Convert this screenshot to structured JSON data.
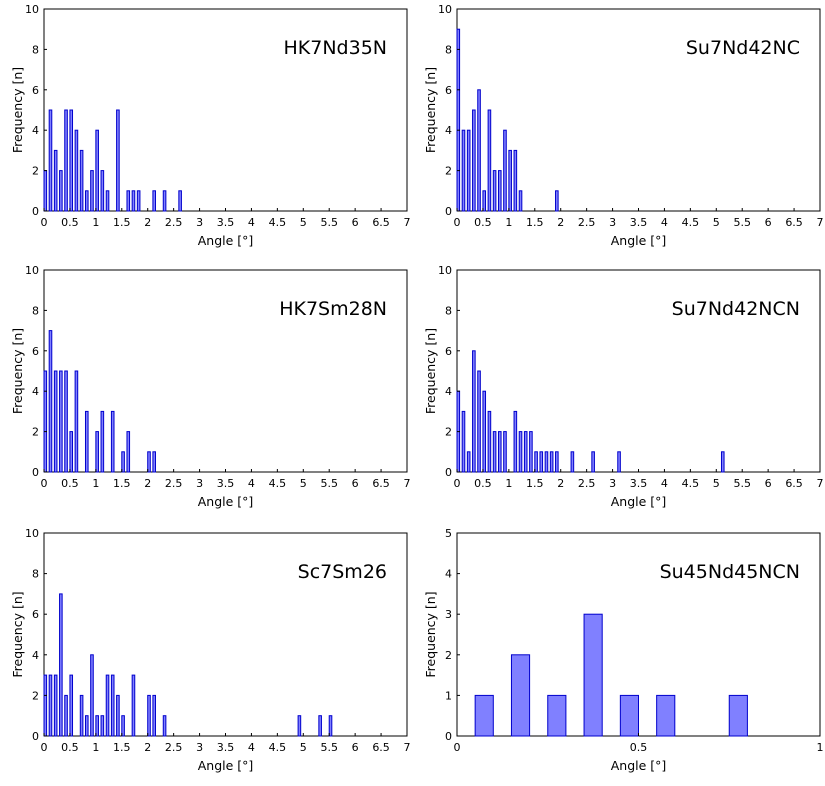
{
  "colors": {
    "bar_fill": "#8080ff",
    "bar_stroke": "#0000cc",
    "axis": "#000000"
  },
  "chart_data": [
    {
      "type": "bar",
      "title": "HK7Nd35N",
      "xlabel": "Angle [°]",
      "ylabel": "Frequency [n]",
      "xlim": [
        0,
        7
      ],
      "ylim": [
        0,
        10
      ],
      "xticks": [
        "0",
        "0.5",
        "1",
        "1.5",
        "2",
        "2.5",
        "3",
        "3.5",
        "4",
        "4.5",
        "5",
        "5.5",
        "6",
        "6.5",
        "7"
      ],
      "yticks": [
        "0",
        "2",
        "4",
        "6",
        "8",
        "10"
      ],
      "bin_width": 0.05,
      "x": [
        0.0,
        0.1,
        0.2,
        0.3,
        0.4,
        0.5,
        0.6,
        0.7,
        0.8,
        0.9,
        1.0,
        1.1,
        1.2,
        1.4,
        1.6,
        1.7,
        1.8,
        2.1,
        2.3,
        2.6
      ],
      "values": [
        2,
        5,
        3,
        2,
        5,
        5,
        4,
        3,
        1,
        2,
        4,
        2,
        1,
        5,
        1,
        1,
        1,
        1,
        1,
        1
      ]
    },
    {
      "type": "bar",
      "title": "Su7Nd42NC",
      "xlabel": "Angle [°]",
      "ylabel": "Frequency [n]",
      "xlim": [
        0,
        7
      ],
      "ylim": [
        0,
        10
      ],
      "xticks": [
        "0",
        "0.5",
        "1",
        "1.5",
        "2",
        "2.5",
        "3",
        "3.5",
        "4",
        "4.5",
        "5",
        "5.5",
        "6",
        "6.5",
        "7"
      ],
      "yticks": [
        "0",
        "2",
        "4",
        "6",
        "8",
        "10"
      ],
      "bin_width": 0.05,
      "x": [
        0.0,
        0.1,
        0.2,
        0.3,
        0.4,
        0.5,
        0.6,
        0.7,
        0.8,
        0.9,
        1.0,
        1.1,
        1.2,
        1.9
      ],
      "values": [
        9,
        4,
        4,
        5,
        6,
        1,
        5,
        2,
        2,
        4,
        3,
        3,
        1,
        1
      ]
    },
    {
      "type": "bar",
      "title": "HK7Sm28N",
      "xlabel": "Angle [°]",
      "ylabel": "Frequency [n]",
      "xlim": [
        0,
        7
      ],
      "ylim": [
        0,
        10
      ],
      "xticks": [
        "0",
        "0.5",
        "1",
        "1.5",
        "2",
        "2.5",
        "3",
        "3.5",
        "4",
        "4.5",
        "5",
        "5.5",
        "6",
        "6.5",
        "7"
      ],
      "yticks": [
        "0",
        "2",
        "4",
        "6",
        "8",
        "10"
      ],
      "bin_width": 0.05,
      "x": [
        0.0,
        0.1,
        0.2,
        0.3,
        0.4,
        0.5,
        0.6,
        0.8,
        1.0,
        1.1,
        1.3,
        1.5,
        1.6,
        2.0,
        2.1
      ],
      "values": [
        5,
        7,
        5,
        5,
        5,
        2,
        5,
        3,
        2,
        3,
        3,
        1,
        2,
        1,
        1
      ]
    },
    {
      "type": "bar",
      "title": "Su7Nd42NCN",
      "xlabel": "Angle [°]",
      "ylabel": "Frequency [n]",
      "xlim": [
        0,
        7
      ],
      "ylim": [
        0,
        10
      ],
      "xticks": [
        "0",
        "0.5",
        "1",
        "1.5",
        "2",
        "2.5",
        "3",
        "3.5",
        "4",
        "4.5",
        "5",
        "5.5",
        "6",
        "6.5",
        "7"
      ],
      "yticks": [
        "0",
        "2",
        "4",
        "6",
        "8",
        "10"
      ],
      "bin_width": 0.05,
      "x": [
        0.0,
        0.1,
        0.2,
        0.3,
        0.4,
        0.5,
        0.6,
        0.7,
        0.8,
        0.9,
        1.1,
        1.2,
        1.3,
        1.4,
        1.5,
        1.6,
        1.7,
        1.8,
        1.9,
        2.2,
        2.6,
        3.1,
        5.1
      ],
      "values": [
        4,
        3,
        1,
        6,
        5,
        4,
        3,
        2,
        2,
        2,
        3,
        2,
        2,
        2,
        1,
        1,
        1,
        1,
        1,
        1,
        1,
        1,
        1
      ]
    },
    {
      "type": "bar",
      "title": "Sc7Sm26",
      "xlabel": "Angle [°]",
      "ylabel": "Frequency [n]",
      "xlim": [
        0,
        7
      ],
      "ylim": [
        0,
        10
      ],
      "xticks": [
        "0",
        "0.5",
        "1",
        "1.5",
        "2",
        "2.5",
        "3",
        "3.5",
        "4",
        "4.5",
        "5",
        "5.5",
        "6",
        "6.5",
        "7"
      ],
      "yticks": [
        "0",
        "2",
        "4",
        "6",
        "8",
        "10"
      ],
      "bin_width": 0.05,
      "x": [
        0.0,
        0.1,
        0.2,
        0.3,
        0.4,
        0.5,
        0.7,
        0.8,
        0.9,
        1.0,
        1.1,
        1.2,
        1.3,
        1.4,
        1.5,
        1.7,
        2.0,
        2.1,
        2.3,
        4.9,
        5.3,
        5.5
      ],
      "values": [
        3,
        3,
        3,
        7,
        2,
        3,
        2,
        1,
        4,
        1,
        1,
        3,
        3,
        2,
        1,
        3,
        2,
        2,
        1,
        1,
        1,
        1
      ]
    },
    {
      "type": "bar",
      "title": "Su45Nd45NCN",
      "xlabel": "Angle [°]",
      "ylabel": "Frequency [n]",
      "xlim": [
        0,
        1
      ],
      "ylim": [
        0,
        5
      ],
      "xticks": [
        "0",
        "0.5",
        "1"
      ],
      "yticks": [
        "0",
        "1",
        "2",
        "3",
        "4",
        "5"
      ],
      "bin_width": 0.05,
      "x": [
        0.05,
        0.15,
        0.25,
        0.35,
        0.45,
        0.55,
        0.75
      ],
      "values": [
        1,
        2,
        1,
        3,
        1,
        1,
        1
      ]
    }
  ]
}
